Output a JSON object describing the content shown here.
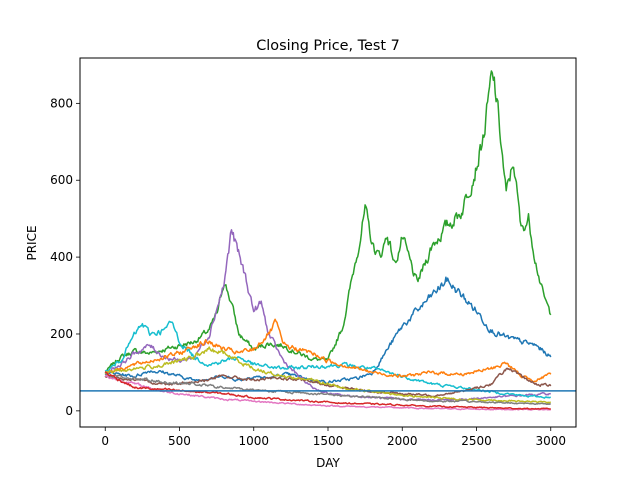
{
  "chart_data": {
    "type": "line",
    "title": "Closing Price, Test 7",
    "xlabel": "DAY",
    "ylabel": "PRICE",
    "xlim": [
      -170,
      3170
    ],
    "ylim": [
      -42,
      918
    ],
    "x_ticks": [
      0,
      500,
      1000,
      1500,
      2000,
      2500,
      3000
    ],
    "y_ticks": [
      0,
      200,
      400,
      600,
      800
    ],
    "x_tick_labels": [
      "0",
      "500",
      "1000",
      "1500",
      "2000",
      "2500",
      "3000"
    ],
    "y_tick_labels": [
      "0",
      "200",
      "400",
      "600",
      "800"
    ],
    "grid": false,
    "legend": "none",
    "reference_line": {
      "y": 52,
      "color": "#1f77b4"
    },
    "series": [
      {
        "color": "#2ca02c",
        "x": [
          0,
          100,
          200,
          300,
          400,
          500,
          600,
          700,
          760,
          800,
          850,
          900,
          1000,
          1100,
          1200,
          1300,
          1400,
          1500,
          1600,
          1700,
          1750,
          1800,
          1850,
          1900,
          1950,
          2000,
          2100,
          2200,
          2300,
          2400,
          2500,
          2550,
          2600,
          2620,
          2650,
          2700,
          2750,
          2800,
          2850,
          2900,
          2950,
          3000
        ],
        "values": [
          100,
          140,
          155,
          150,
          160,
          170,
          180,
          210,
          260,
          340,
          280,
          200,
          160,
          175,
          170,
          150,
          135,
          130,
          220,
          420,
          520,
          430,
          400,
          460,
          380,
          450,
          330,
          430,
          480,
          520,
          640,
          720,
          860,
          850,
          760,
          560,
          650,
          470,
          500,
          390,
          300,
          250
        ]
      },
      {
        "color": "#1f77b4",
        "x": [
          0,
          100,
          200,
          300,
          400,
          500,
          600,
          700,
          800,
          900,
          1000,
          1100,
          1200,
          1300,
          1400,
          1500,
          1600,
          1700,
          1800,
          1900,
          2000,
          2100,
          2200,
          2300,
          2400,
          2500,
          2600,
          2700,
          2800,
          2900,
          3000
        ],
        "values": [
          100,
          95,
          90,
          105,
          100,
          90,
          80,
          85,
          90,
          80,
          90,
          85,
          95,
          90,
          80,
          75,
          80,
          85,
          100,
          160,
          220,
          260,
          300,
          340,
          300,
          260,
          210,
          190,
          180,
          170,
          140
        ]
      },
      {
        "color": "#9467bd",
        "x": [
          0,
          100,
          200,
          300,
          400,
          500,
          600,
          700,
          800,
          850,
          880,
          950,
          1000,
          1050,
          1100,
          1200,
          1300,
          1400,
          1500,
          1600,
          1800,
          2000,
          2200,
          2400,
          2600,
          2800,
          3000
        ],
        "values": [
          100,
          120,
          150,
          170,
          140,
          130,
          140,
          200,
          330,
          470,
          430,
          340,
          260,
          280,
          200,
          130,
          90,
          60,
          45,
          40,
          35,
          30,
          28,
          30,
          35,
          40,
          45
        ]
      },
      {
        "color": "#17becf",
        "x": [
          0,
          100,
          200,
          250,
          300,
          400,
          450,
          500,
          600,
          700,
          800,
          900,
          1000,
          1200,
          1400,
          1600,
          1800,
          2000,
          2200,
          2400,
          2600,
          2800,
          3000
        ],
        "values": [
          100,
          130,
          200,
          225,
          200,
          210,
          230,
          180,
          140,
          120,
          130,
          140,
          120,
          110,
          115,
          120,
          110,
          90,
          70,
          60,
          50,
          40,
          35
        ]
      },
      {
        "color": "#ff7f0e",
        "x": [
          0,
          100,
          200,
          300,
          400,
          500,
          600,
          700,
          800,
          900,
          1000,
          1100,
          1150,
          1200,
          1300,
          1400,
          1500,
          1600,
          1800,
          2000,
          2200,
          2400,
          2600,
          2700,
          2800,
          2900,
          3000
        ],
        "values": [
          100,
          110,
          120,
          130,
          140,
          150,
          170,
          180,
          160,
          150,
          160,
          200,
          230,
          170,
          160,
          150,
          130,
          120,
          100,
          90,
          100,
          95,
          110,
          125,
          90,
          80,
          95
        ]
      },
      {
        "color": "#8c564b",
        "x": [
          0,
          200,
          400,
          600,
          800,
          1000,
          1200,
          1400,
          1600,
          1800,
          2000,
          2200,
          2400,
          2600,
          2700,
          2800,
          2900,
          3000
        ],
        "values": [
          90,
          80,
          70,
          75,
          90,
          80,
          85,
          75,
          60,
          50,
          45,
          40,
          50,
          70,
          110,
          90,
          70,
          65
        ]
      },
      {
        "color": "#bcbd22",
        "x": [
          0,
          200,
          400,
          600,
          700,
          800,
          900,
          1000,
          1200,
          1400,
          1600,
          1800,
          2000,
          2200,
          2400,
          2600,
          2800,
          3000
        ],
        "values": [
          100,
          110,
          120,
          140,
          160,
          150,
          130,
          110,
          90,
          80,
          60,
          50,
          40,
          35,
          30,
          28,
          25,
          22
        ]
      },
      {
        "color": "#7f7f7f",
        "x": [
          0,
          200,
          400,
          600,
          800,
          1000,
          1200,
          1400,
          1600,
          1800,
          2000,
          2200,
          2400,
          2600,
          2800,
          3000
        ],
        "values": [
          95,
          85,
          75,
          70,
          60,
          55,
          50,
          45,
          40,
          35,
          30,
          25,
          25,
          22,
          20,
          18
        ]
      },
      {
        "color": "#e377c2",
        "x": [
          0,
          200,
          400,
          600,
          800,
          1000,
          1200,
          1400,
          1600,
          1800,
          2000,
          2200,
          2400,
          2600,
          2800,
          3000
        ],
        "values": [
          90,
          70,
          50,
          40,
          30,
          25,
          20,
          15,
          12,
          10,
          8,
          6,
          5,
          4,
          4,
          3
        ]
      },
      {
        "color": "#d62728",
        "x": [
          0,
          200,
          400,
          600,
          800,
          1000,
          1200,
          1400,
          1600,
          1800,
          2000,
          2200,
          2400,
          2600,
          2800,
          3000
        ],
        "values": [
          100,
          60,
          55,
          50,
          45,
          35,
          30,
          25,
          20,
          18,
          15,
          12,
          10,
          8,
          6,
          5
        ]
      }
    ]
  }
}
